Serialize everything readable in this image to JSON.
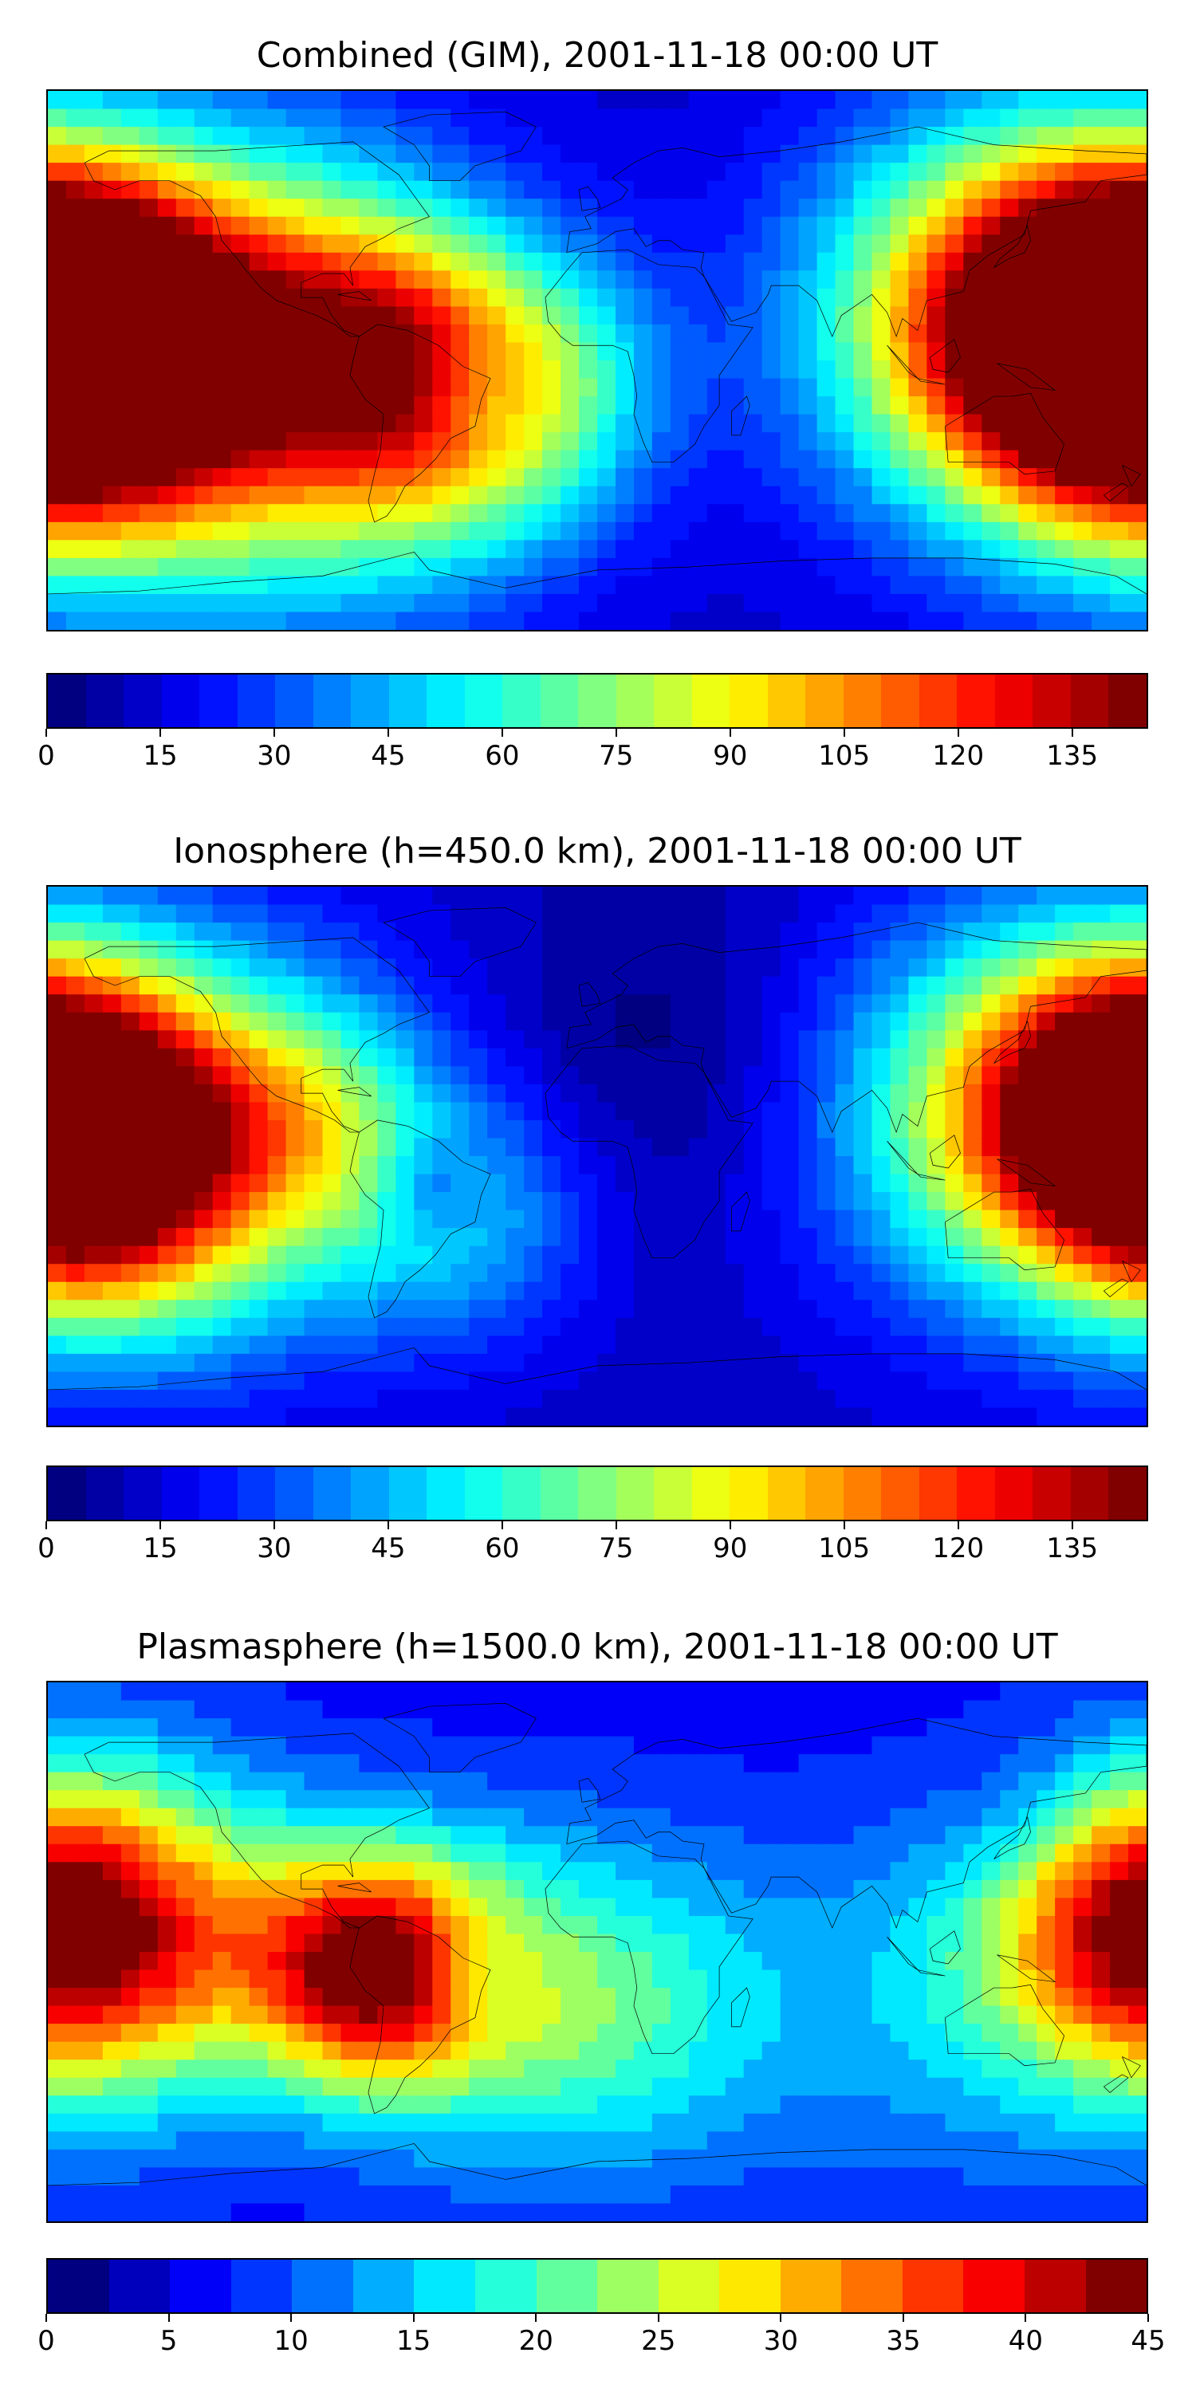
{
  "panels": [
    {
      "title": "Combined (GIM), 2001-11-18 00:00 UT",
      "colorbar": {
        "min": 0,
        "max": 145,
        "step": 5,
        "ticks": [
          0,
          15,
          30,
          45,
          60,
          75,
          90,
          105,
          120,
          135
        ]
      },
      "field": {
        "bg": 13,
        "blobs": [
          {
            "lon": -180,
            "lat": 5,
            "amp": 120,
            "r": 40
          },
          {
            "lon": -160,
            "lat": 15,
            "amp": 25,
            "r": 30
          },
          {
            "lon": -115,
            "lat": -5,
            "amp": 90,
            "r": 50
          },
          {
            "lon": -75,
            "lat": 10,
            "amp": 40,
            "r": 30
          },
          {
            "lon": -50,
            "lat": -20,
            "amp": 50,
            "r": 35
          },
          {
            "lon": -20,
            "lat": -5,
            "amp": 35,
            "r": 30
          },
          {
            "lon": 130,
            "lat": 15,
            "amp": 75,
            "r": 45
          },
          {
            "lon": 170,
            "lat": 5,
            "amp": 60,
            "r": 40
          },
          {
            "lon": -40,
            "lat": -10,
            "amp": -25,
            "r": 15
          }
        ]
      }
    },
    {
      "title": "Ionosphere  (h=450.0 km), 2001-11-18 00:00 UT",
      "colorbar": {
        "min": 0,
        "max": 145,
        "step": 5,
        "ticks": [
          0,
          15,
          30,
          45,
          60,
          75,
          90,
          105,
          120,
          135
        ]
      },
      "field": {
        "bg": 12,
        "blobs": [
          {
            "lon": -180,
            "lat": 18,
            "amp": 90,
            "r": 35
          },
          {
            "lon": -160,
            "lat": -10,
            "amp": 55,
            "r": 35
          },
          {
            "lon": -120,
            "lat": 5,
            "amp": 55,
            "r": 45
          },
          {
            "lon": -95,
            "lat": 15,
            "amp": 25,
            "r": 25
          },
          {
            "lon": -45,
            "lat": -20,
            "amp": 30,
            "r": 30
          },
          {
            "lon": -55,
            "lat": -10,
            "amp": -20,
            "r": 12
          },
          {
            "lon": 135,
            "lat": 15,
            "amp": 60,
            "r": 45
          },
          {
            "lon": 175,
            "lat": 10,
            "amp": 45,
            "r": 35
          },
          {
            "lon": 20,
            "lat": 35,
            "amp": -10,
            "r": 40
          }
        ]
      }
    },
    {
      "title": "Plasmasphere (h=1500.0 km), 2001-11-18 00:00 UT",
      "colorbar": {
        "min": 0,
        "max": 45,
        "step": 2.5,
        "ticks": [
          0,
          5,
          10,
          15,
          20,
          25,
          30,
          35,
          40,
          45
        ]
      },
      "field": {
        "bg": 6,
        "blobs": [
          {
            "lon": -75,
            "lat": -5,
            "amp": 32,
            "r": 28
          },
          {
            "lon": -150,
            "lat": 5,
            "amp": 18,
            "r": 40
          },
          {
            "lon": -180,
            "lat": 8,
            "amp": 14,
            "r": 35
          },
          {
            "lon": -30,
            "lat": -15,
            "amp": 12,
            "r": 40
          },
          {
            "lon": 20,
            "lat": -20,
            "amp": 8,
            "r": 40
          },
          {
            "lon": 120,
            "lat": -15,
            "amp": 8,
            "r": 45
          },
          {
            "lon": 180,
            "lat": 10,
            "amp": 12,
            "r": 35
          },
          {
            "lon": -40,
            "lat": -8,
            "amp": -6,
            "r": 12
          },
          {
            "lon": 140,
            "lat": 45,
            "amp": -3,
            "r": 20
          }
        ]
      }
    }
  ]
}
